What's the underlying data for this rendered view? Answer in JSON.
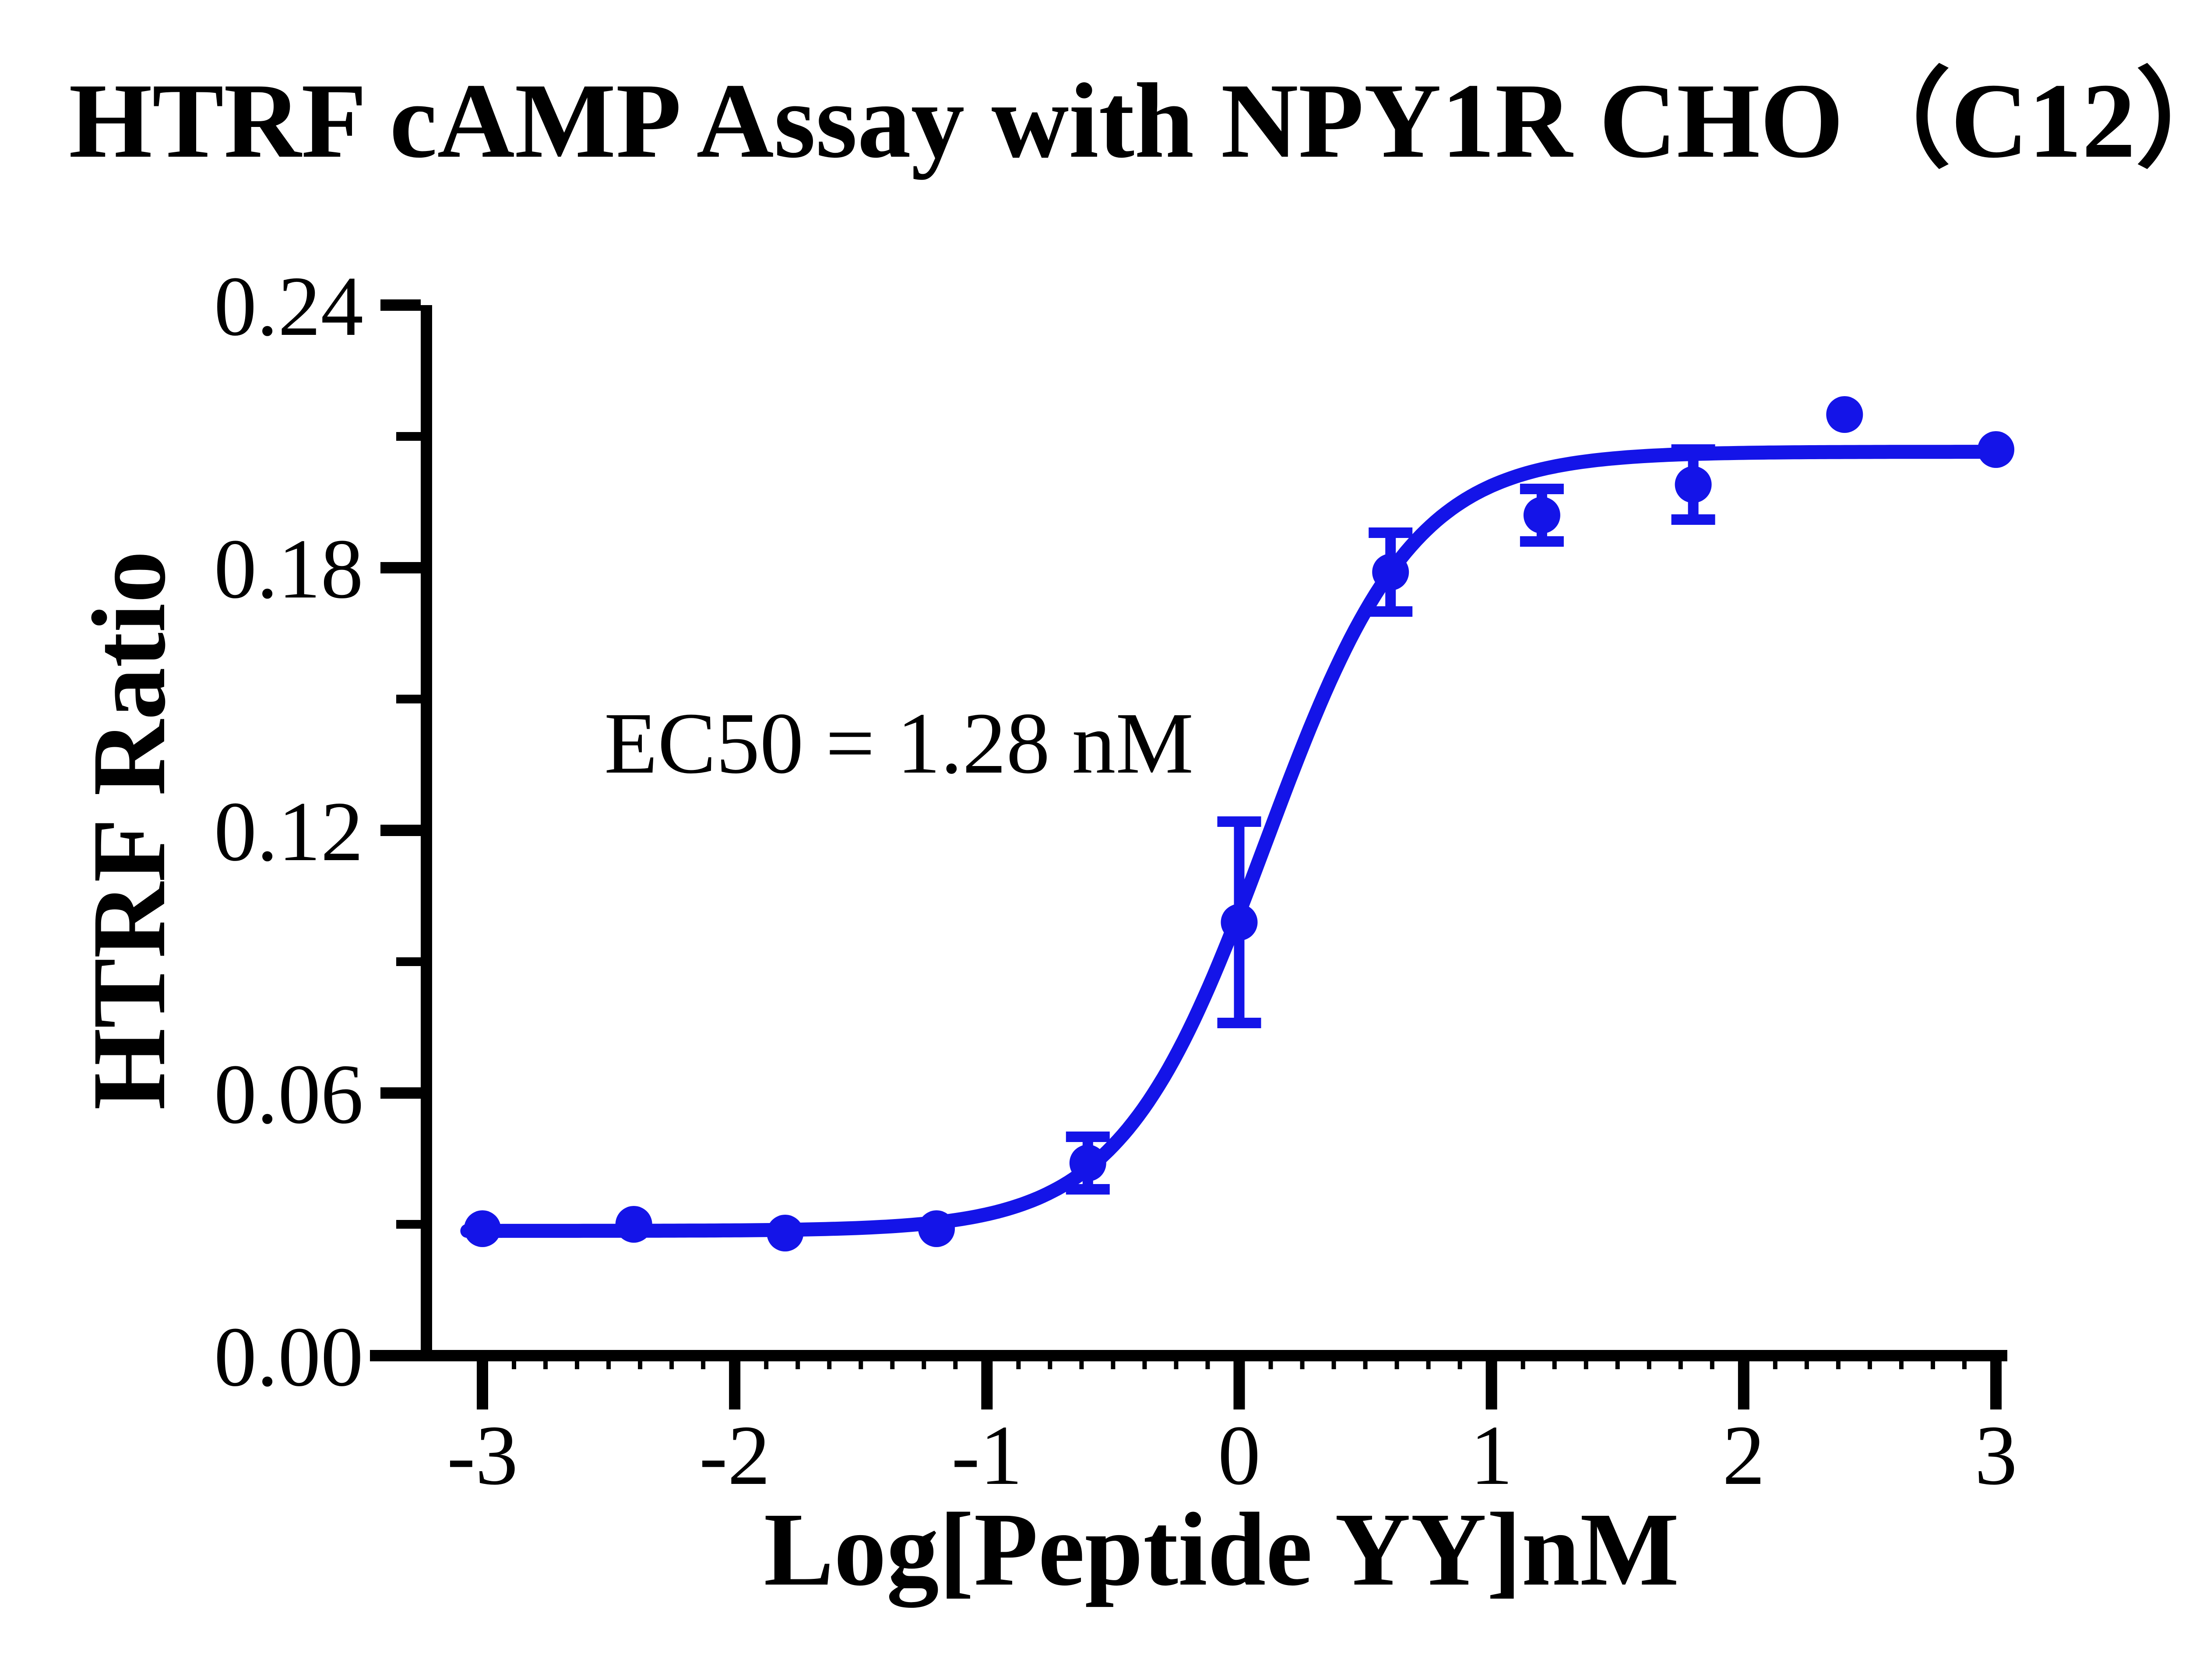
{
  "title": "HTRF cAMP Assay with NPY1R CHO（C12）",
  "annotation": "EC50 = 1.28 nM",
  "colors": {
    "series": "#1414e8",
    "axis": "#000000",
    "background": "#ffffff"
  },
  "axes": {
    "x": {
      "label": "Log[Peptide YY]nM",
      "tick_values": [
        -3,
        -2,
        -1,
        0,
        1,
        2,
        3
      ],
      "tick_labels": [
        "-3",
        "-2",
        "-1",
        "0",
        "1",
        "2",
        "3"
      ],
      "minor_step": 0.125,
      "range": [
        -3,
        3
      ]
    },
    "y": {
      "label": "HTRF Ratio",
      "tick_values": [
        0,
        0.06,
        0.12,
        0.18,
        0.24
      ],
      "tick_labels": [
        "0.00",
        "0.06",
        "0.12",
        "0.18",
        "0.24"
      ],
      "minor_values": [
        0.03,
        0.09,
        0.15,
        0.21
      ],
      "range": [
        0,
        0.24
      ]
    }
  },
  "chart_data": {
    "type": "scatter",
    "title": "HTRF cAMP Assay with NPY1R CHO（C12）",
    "xlabel": "Log[Peptide YY]nM",
    "ylabel": "HTRF Ratio",
    "xlim": [
      -3,
      3
    ],
    "ylim": [
      0,
      0.24
    ],
    "grid": false,
    "legend": "none",
    "series": [
      {
        "name": "Peptide YY",
        "x": [
          -3,
          -2.4,
          -1.8,
          -1.2,
          -0.6,
          0,
          0.6,
          1.2,
          1.8,
          2.4,
          3
        ],
        "y": [
          0.029,
          0.03,
          0.028,
          0.029,
          0.044,
          0.099,
          0.179,
          0.192,
          0.199,
          0.215,
          0.207
        ],
        "yerr": [
          null,
          null,
          null,
          null,
          0.006,
          0.023,
          0.009,
          0.006,
          0.008,
          null,
          null
        ]
      }
    ],
    "fit": {
      "model": "four-parameter-logistic",
      "bottom": 0.0285,
      "top": 0.2065,
      "logEC50": 0.1072,
      "hill": 1.5,
      "ec50_label_nM": "1.28"
    }
  }
}
